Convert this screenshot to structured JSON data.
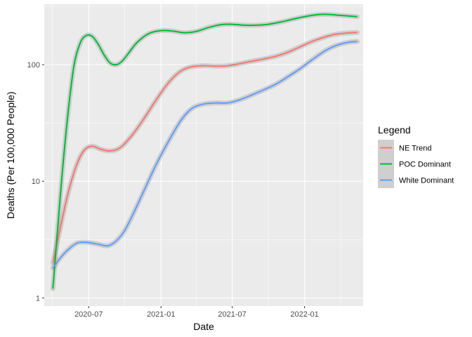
{
  "chart_data": {
    "type": "line",
    "xlabel": "Date",
    "ylabel": "Deaths (Per 100,000 People)",
    "y_scale": "log10",
    "ylim": [
      0.85,
      330
    ],
    "xlim": [
      "2020-03-10",
      "2022-05-30"
    ],
    "grid": true,
    "legend_position": "right",
    "x_ticks": [
      {
        "date": "2020-07-01",
        "label": "2020-07"
      },
      {
        "date": "2021-01-01",
        "label": "2021-01"
      },
      {
        "date": "2021-07-01",
        "label": "2021-07"
      },
      {
        "date": "2022-01-01",
        "label": "2022-01"
      }
    ],
    "y_ticks": [
      {
        "value": 1,
        "label": "1"
      },
      {
        "value": 10,
        "label": "10"
      },
      {
        "value": 100,
        "label": "100"
      }
    ],
    "legend": {
      "title": "Legend",
      "entries": [
        "NE Trend",
        "POC Dominant",
        "White Dominant"
      ]
    },
    "series": [
      {
        "name": "NE Trend",
        "color": "#F8766D",
        "points": [
          [
            "2020-04-01",
            2.0
          ],
          [
            "2020-04-20",
            4.0
          ],
          [
            "2020-05-10",
            8.0
          ],
          [
            "2020-06-01",
            14.0
          ],
          [
            "2020-06-20",
            18.5
          ],
          [
            "2020-07-10",
            20.0
          ],
          [
            "2020-08-01",
            18.8
          ],
          [
            "2020-08-25",
            18.2
          ],
          [
            "2020-09-20",
            19.5
          ],
          [
            "2020-10-20",
            25.0
          ],
          [
            "2020-11-20",
            35.0
          ],
          [
            "2020-12-20",
            50.0
          ],
          [
            "2021-01-20",
            70.0
          ],
          [
            "2021-02-20",
            88.0
          ],
          [
            "2021-03-20",
            96.0
          ],
          [
            "2021-04-20",
            98.0
          ],
          [
            "2021-05-20",
            97.0
          ],
          [
            "2021-06-20",
            98.0
          ],
          [
            "2021-07-20",
            102.0
          ],
          [
            "2021-08-20",
            107.0
          ],
          [
            "2021-09-20",
            112.0
          ],
          [
            "2021-10-20",
            118.0
          ],
          [
            "2021-11-20",
            128.0
          ],
          [
            "2021-12-20",
            142.0
          ],
          [
            "2022-01-20",
            158.0
          ],
          [
            "2022-02-20",
            172.0
          ],
          [
            "2022-03-20",
            182.0
          ],
          [
            "2022-04-20",
            187.0
          ],
          [
            "2022-05-15",
            189.0
          ]
        ]
      },
      {
        "name": "POC Dominant",
        "color": "#00BA38",
        "points": [
          [
            "2020-04-01",
            1.2
          ],
          [
            "2020-04-12",
            3.5
          ],
          [
            "2020-04-25",
            12.0
          ],
          [
            "2020-05-10",
            40.0
          ],
          [
            "2020-05-25",
            100.0
          ],
          [
            "2020-06-10",
            155.0
          ],
          [
            "2020-06-25",
            178.0
          ],
          [
            "2020-07-10",
            175.0
          ],
          [
            "2020-07-25",
            150.0
          ],
          [
            "2020-08-10",
            120.0
          ],
          [
            "2020-08-25",
            103.0
          ],
          [
            "2020-09-10",
            100.0
          ],
          [
            "2020-09-25",
            108.0
          ],
          [
            "2020-10-10",
            125.0
          ],
          [
            "2020-11-01",
            155.0
          ],
          [
            "2020-12-01",
            185.0
          ],
          [
            "2021-01-01",
            196.0
          ],
          [
            "2021-02-01",
            194.0
          ],
          [
            "2021-03-01",
            188.0
          ],
          [
            "2021-04-01",
            193.0
          ],
          [
            "2021-05-01",
            208.0
          ],
          [
            "2021-06-01",
            220.0
          ],
          [
            "2021-07-01",
            222.0
          ],
          [
            "2021-08-01",
            218.0
          ],
          [
            "2021-09-01",
            218.0
          ],
          [
            "2021-10-01",
            222.0
          ],
          [
            "2021-11-01",
            232.0
          ],
          [
            "2021-12-01",
            245.0
          ],
          [
            "2022-01-01",
            258.0
          ],
          [
            "2022-02-01",
            268.0
          ],
          [
            "2022-03-01",
            270.0
          ],
          [
            "2022-04-01",
            265.0
          ],
          [
            "2022-05-15",
            258.0
          ]
        ]
      },
      {
        "name": "White Dominant",
        "color": "#619CFF",
        "points": [
          [
            "2020-04-01",
            1.8
          ],
          [
            "2020-04-20",
            2.2
          ],
          [
            "2020-05-10",
            2.6
          ],
          [
            "2020-06-01",
            2.95
          ],
          [
            "2020-06-20",
            3.0
          ],
          [
            "2020-07-10",
            2.95
          ],
          [
            "2020-08-01",
            2.85
          ],
          [
            "2020-08-20",
            2.8
          ],
          [
            "2020-09-10",
            3.1
          ],
          [
            "2020-10-01",
            3.8
          ],
          [
            "2020-10-25",
            5.5
          ],
          [
            "2020-11-20",
            8.5
          ],
          [
            "2020-12-20",
            14.0
          ],
          [
            "2021-01-20",
            22.0
          ],
          [
            "2021-02-20",
            33.0
          ],
          [
            "2021-03-20",
            42.0
          ],
          [
            "2021-04-20",
            46.0
          ],
          [
            "2021-05-20",
            47.0
          ],
          [
            "2021-06-20",
            47.0
          ],
          [
            "2021-07-20",
            50.0
          ],
          [
            "2021-08-20",
            55.0
          ],
          [
            "2021-09-20",
            61.0
          ],
          [
            "2021-10-20",
            68.0
          ],
          [
            "2021-11-20",
            79.0
          ],
          [
            "2021-12-20",
            92.0
          ],
          [
            "2022-01-20",
            110.0
          ],
          [
            "2022-02-20",
            130.0
          ],
          [
            "2022-03-20",
            145.0
          ],
          [
            "2022-04-20",
            155.0
          ],
          [
            "2022-05-15",
            158.0
          ]
        ]
      }
    ]
  }
}
